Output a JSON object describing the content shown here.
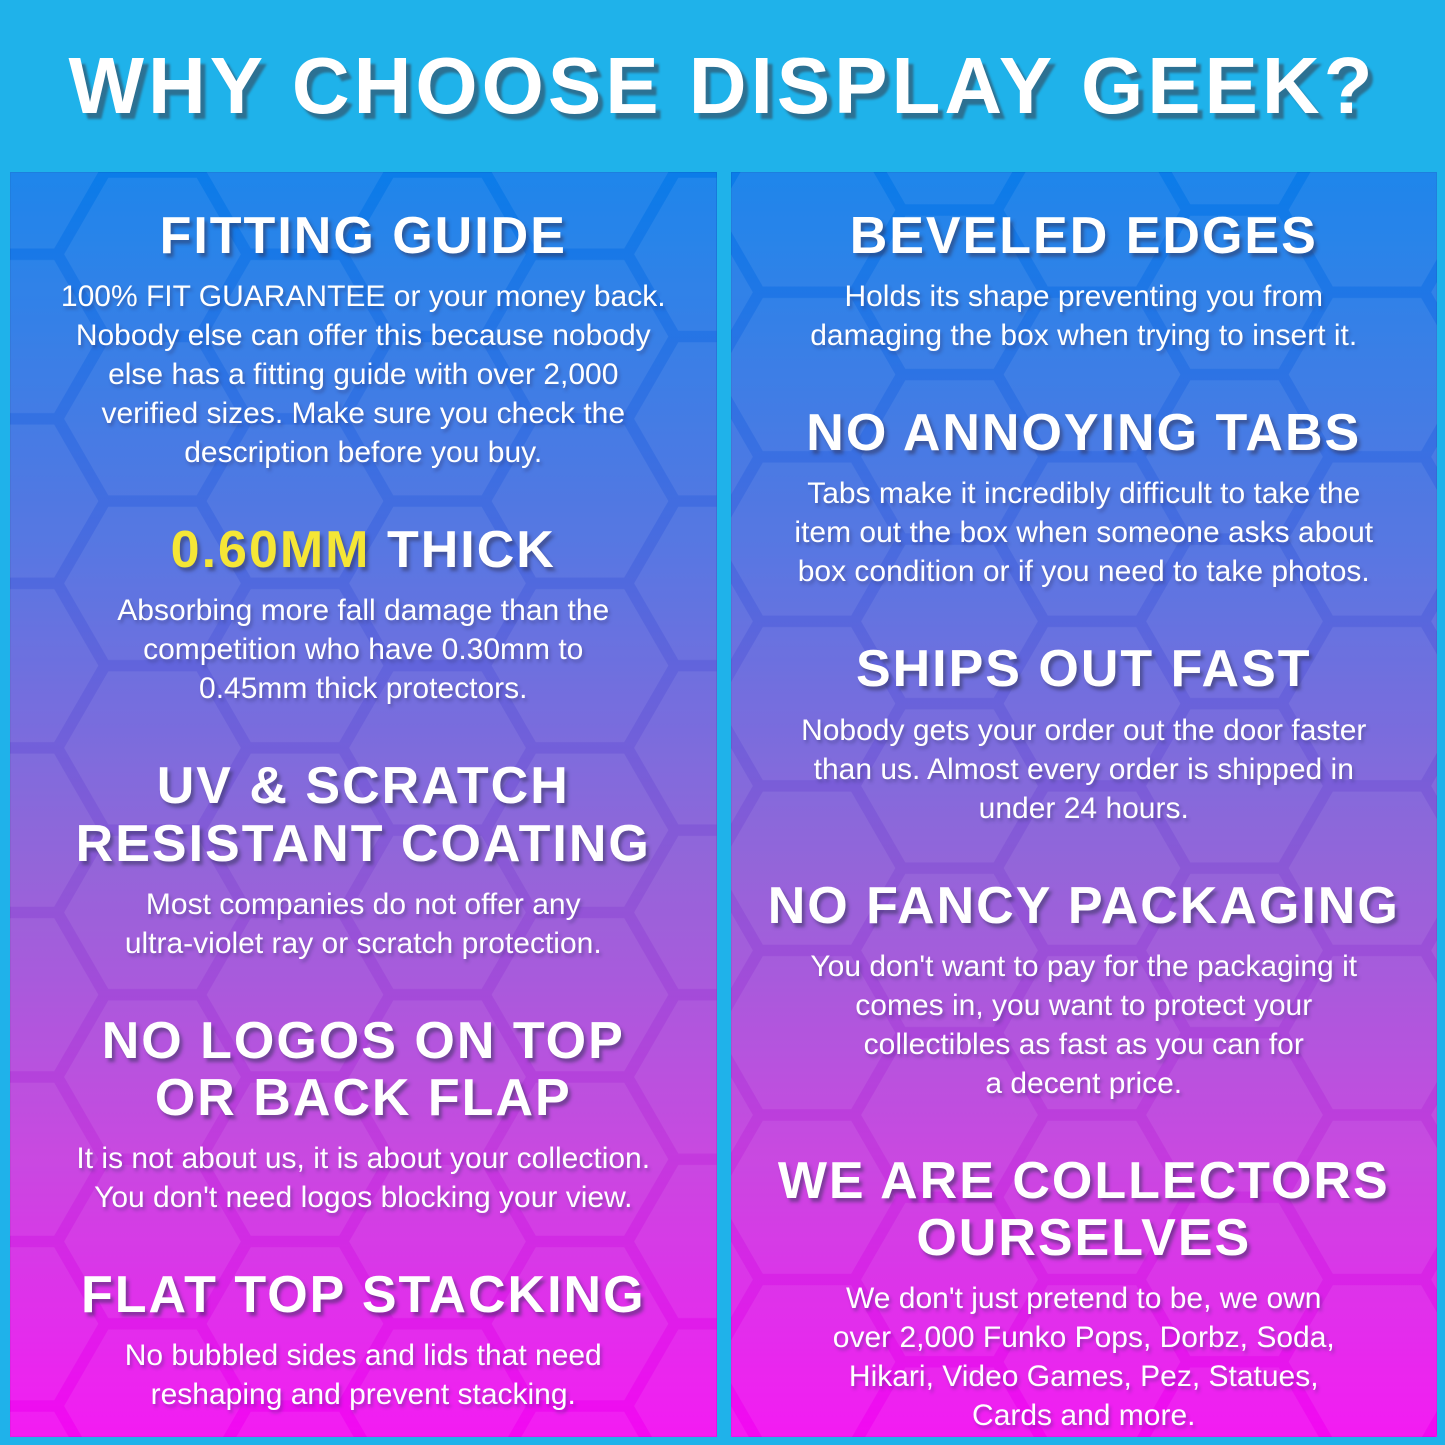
{
  "page": {
    "title": "WHY CHOOSE DISPLAY GEEK?"
  },
  "colors": {
    "page_bg": "#1fb2ea",
    "panel_gradient": [
      "#0b7ce9",
      "#4a6bdf",
      "#8b58d6",
      "#c23bdd",
      "#f308f2"
    ],
    "highlight_yellow": "#f5e636",
    "text_white": "#ffffff"
  },
  "left_column": {
    "sections": [
      {
        "heading": "FITTING GUIDE",
        "body": "100% FIT GUARANTEE or your money back.\nNobody else can offer this because nobody\nelse has a fitting guide with over 2,000\nverified sizes. Make sure you check the\ndescription before you buy."
      },
      {
        "heading_parts": [
          {
            "text": "0.60MM",
            "highlight": true
          },
          {
            "text": " THICK",
            "highlight": false
          }
        ],
        "body": "Absorbing more fall damage than the\ncompetition who have 0.30mm to\n0.45mm thick protectors."
      },
      {
        "heading": "UV & SCRATCH\nRESISTANT COATING",
        "body": "Most companies do not offer any\nultra-violet ray or scratch protection."
      },
      {
        "heading": "NO LOGOS ON TOP\nOR BACK FLAP",
        "body": "It is not about us, it is about your collection.\nYou don't need logos blocking your view."
      },
      {
        "heading": "FLAT TOP STACKING",
        "body": "No bubbled sides and lids that need\nreshaping and prevent stacking."
      }
    ]
  },
  "right_column": {
    "sections": [
      {
        "heading": "BEVELED EDGES",
        "body": "Holds its shape preventing you from\ndamaging the box when trying to insert it."
      },
      {
        "heading": "NO ANNOYING TABS",
        "body": "Tabs make it incredibly difficult to take the\nitem out the box when someone asks about\nbox condition or if you need to take photos."
      },
      {
        "heading": "SHIPS OUT FAST",
        "body": "Nobody gets your order out the door faster\nthan us. Almost every order is shipped in\nunder 24 hours."
      },
      {
        "heading": "NO FANCY PACKAGING",
        "body": "You don't want to pay for the packaging it\ncomes in, you want to protect your\ncollectibles as fast as you can for\na decent price."
      },
      {
        "heading": "WE ARE COLLECTORS\nOURSELVES",
        "body": "We don't just pretend to be, we own\nover 2,000 Funko Pops, Dorbz, Soda,\nHikari, Video Games, Pez, Statues,\nCards and more."
      }
    ]
  }
}
